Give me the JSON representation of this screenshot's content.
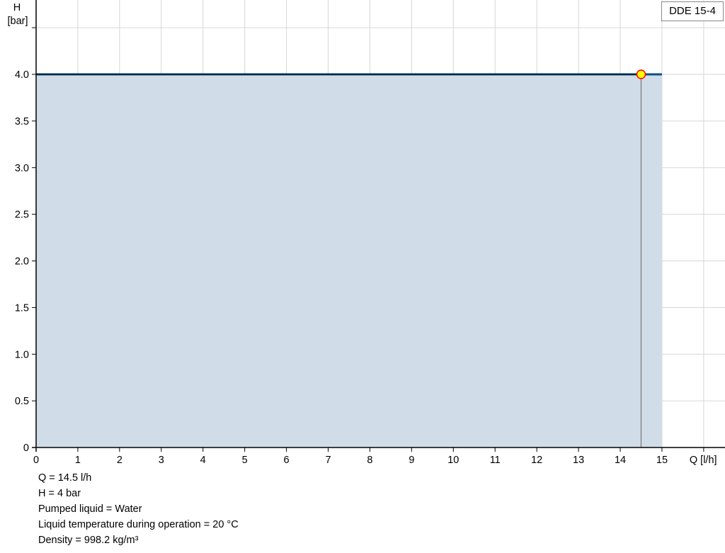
{
  "chart_data": {
    "type": "area",
    "title": "",
    "xlabel": "Q [l/h]",
    "ylabel_line1": "H",
    "ylabel_line2": "[bar]",
    "xlim": [
      0,
      16
    ],
    "ylim": [
      0,
      4.5
    ],
    "x_ticks": [
      0,
      1,
      2,
      3,
      4,
      5,
      6,
      7,
      8,
      9,
      10,
      11,
      12,
      13,
      14,
      15
    ],
    "y_ticks": [
      "0",
      "0.5",
      "1.0",
      "1.5",
      "2.0",
      "2.5",
      "3.0",
      "3.5",
      "4.0"
    ],
    "y_tick_values": [
      0,
      0.5,
      1.0,
      1.5,
      2.0,
      2.5,
      3.0,
      3.5,
      4.0
    ],
    "grid": true,
    "legend": {
      "position": "top-right",
      "label": "DDE 15-4"
    },
    "series": [
      {
        "name": "DDE 15-4",
        "x": [
          0,
          15
        ],
        "y": [
          4.0,
          4.0
        ],
        "color": "#0b4f86",
        "fill": "#d0dce8"
      }
    ],
    "operating_point": {
      "x": 14.5,
      "y": 4.0,
      "fill": "#ffff00",
      "stroke": "#ff0000"
    }
  },
  "info": {
    "lines": [
      "Q = 14.5 l/h",
      "H = 4 bar",
      "Pumped liquid = Water",
      "Liquid temperature during operation = 20 °C",
      "Density = 998.2 kg/m³"
    ]
  }
}
